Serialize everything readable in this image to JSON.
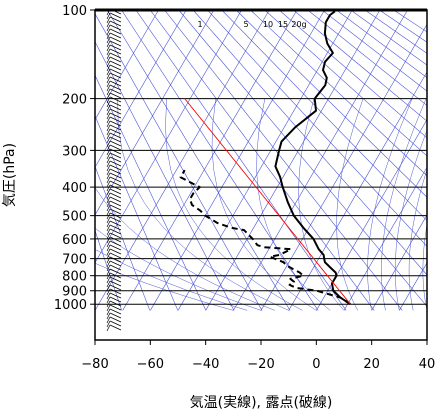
{
  "chart_data": {
    "type": "line",
    "xlabel": "気温(実線), 露点(破線)",
    "ylabel": "気圧(hPa)",
    "xlim": [
      -80,
      40
    ],
    "ylim": [
      1050,
      100
    ],
    "y_scale": "log",
    "x_ticks": [
      "−80",
      "−60",
      "−40",
      "−20",
      "0",
      "20",
      "40"
    ],
    "x_tick_values": [
      -80,
      -60,
      -40,
      -20,
      0,
      20,
      40
    ],
    "y_ticks": [
      "100",
      "200",
      "300",
      "400",
      "500",
      "600",
      "700",
      "800",
      "900",
      "1000"
    ],
    "y_tick_values": [
      100,
      200,
      300,
      400,
      500,
      600,
      700,
      800,
      900,
      1000
    ],
    "mixing_ratio_labels": [
      "1",
      "5",
      "10",
      "15",
      "20g"
    ],
    "series": [
      {
        "style": "solid",
        "color": "#000000",
        "points": [
          [
            11,
            1000
          ],
          [
            6,
            950
          ],
          [
            2,
            900
          ],
          [
            0,
            850
          ],
          [
            0,
            800
          ],
          [
            -1,
            780
          ],
          [
            -3,
            760
          ],
          [
            -7,
            720
          ],
          [
            -8,
            700
          ],
          [
            -9,
            680
          ],
          [
            -12,
            650
          ],
          [
            -16,
            600
          ],
          [
            -22,
            550
          ],
          [
            -28,
            500
          ],
          [
            -33,
            450
          ],
          [
            -38,
            400
          ],
          [
            -41,
            370
          ],
          [
            -45,
            340
          ],
          [
            -47,
            300
          ],
          [
            -48,
            280
          ],
          [
            -46,
            250
          ],
          [
            -42,
            220
          ],
          [
            -45,
            200
          ],
          [
            -44,
            180
          ],
          [
            -45,
            170
          ],
          [
            -48,
            160
          ],
          [
            -49,
            150
          ],
          [
            -48,
            140
          ],
          [
            -52,
            130
          ],
          [
            -55,
            120
          ],
          [
            -57,
            110
          ],
          [
            -57,
            104
          ],
          [
            -56,
            101
          ]
        ]
      },
      {
        "style": "dashed",
        "color": "#000000",
        "points": [
          [
            11,
            1000
          ],
          [
            6,
            950
          ],
          [
            -4,
            900
          ],
          [
            -12,
            880
          ],
          [
            -15,
            860
          ],
          [
            -14,
            840
          ],
          [
            -16,
            820
          ],
          [
            -12,
            800
          ],
          [
            -14,
            780
          ],
          [
            -20,
            740
          ],
          [
            -22,
            720
          ],
          [
            -28,
            690
          ],
          [
            -25,
            680
          ],
          [
            -23,
            660
          ],
          [
            -22,
            650
          ],
          [
            -32,
            640
          ],
          [
            -35,
            630
          ],
          [
            -38,
            600
          ],
          [
            -43,
            560
          ],
          [
            -48,
            550
          ],
          [
            -54,
            530
          ],
          [
            -60,
            500
          ],
          [
            -63,
            480
          ],
          [
            -67,
            460
          ],
          [
            -69,
            440
          ],
          [
            -69,
            420
          ],
          [
            -68,
            400
          ],
          [
            -74,
            380
          ],
          [
            -77,
            370
          ],
          [
            -77,
            360
          ],
          [
            -77,
            350
          ]
        ]
      },
      {
        "style": "solid",
        "color": "#ff0000",
        "points": [
          [
            11,
            1000
          ],
          [
            -92,
            200
          ]
        ]
      }
    ]
  }
}
